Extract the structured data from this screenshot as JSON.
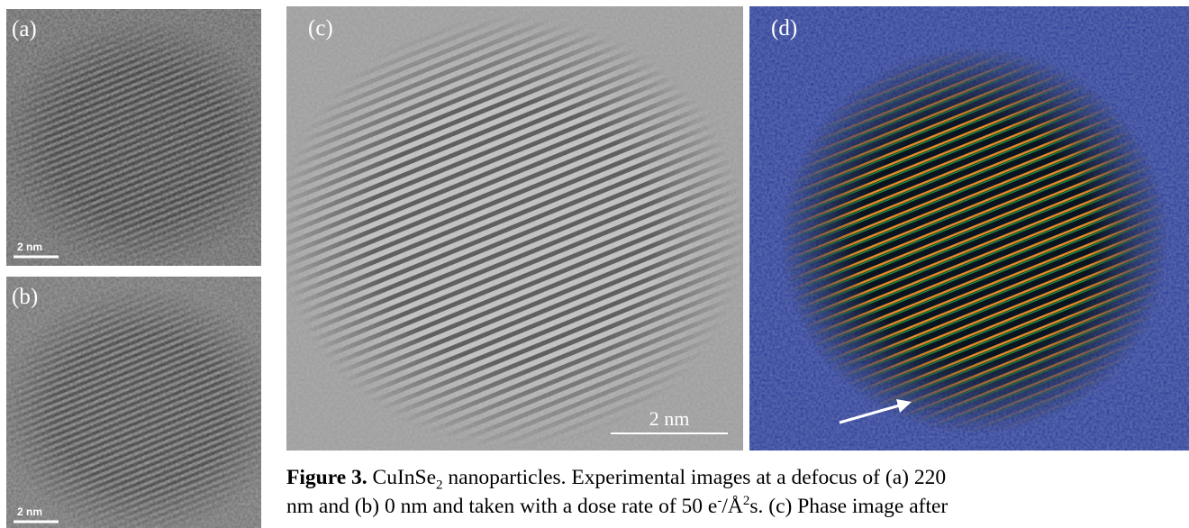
{
  "panels": {
    "a": {
      "label": "(a)",
      "scale": "2 nm"
    },
    "b": {
      "label": "(b)",
      "scale": "2 nm"
    },
    "c": {
      "label": "(c)",
      "scale": "2 nm"
    },
    "d": {
      "label": "(d)"
    }
  },
  "caption": {
    "label": "Figure 3.",
    "segments": [
      " CuInSe",
      "2",
      " nanoparticles. Experimental images at a defocus of (a) 220",
      "nm and (b) 0 nm and taken with a dose rate of 50 e",
      "-",
      "/Å",
      "2",
      "s. (c) Phase image after"
    ]
  }
}
